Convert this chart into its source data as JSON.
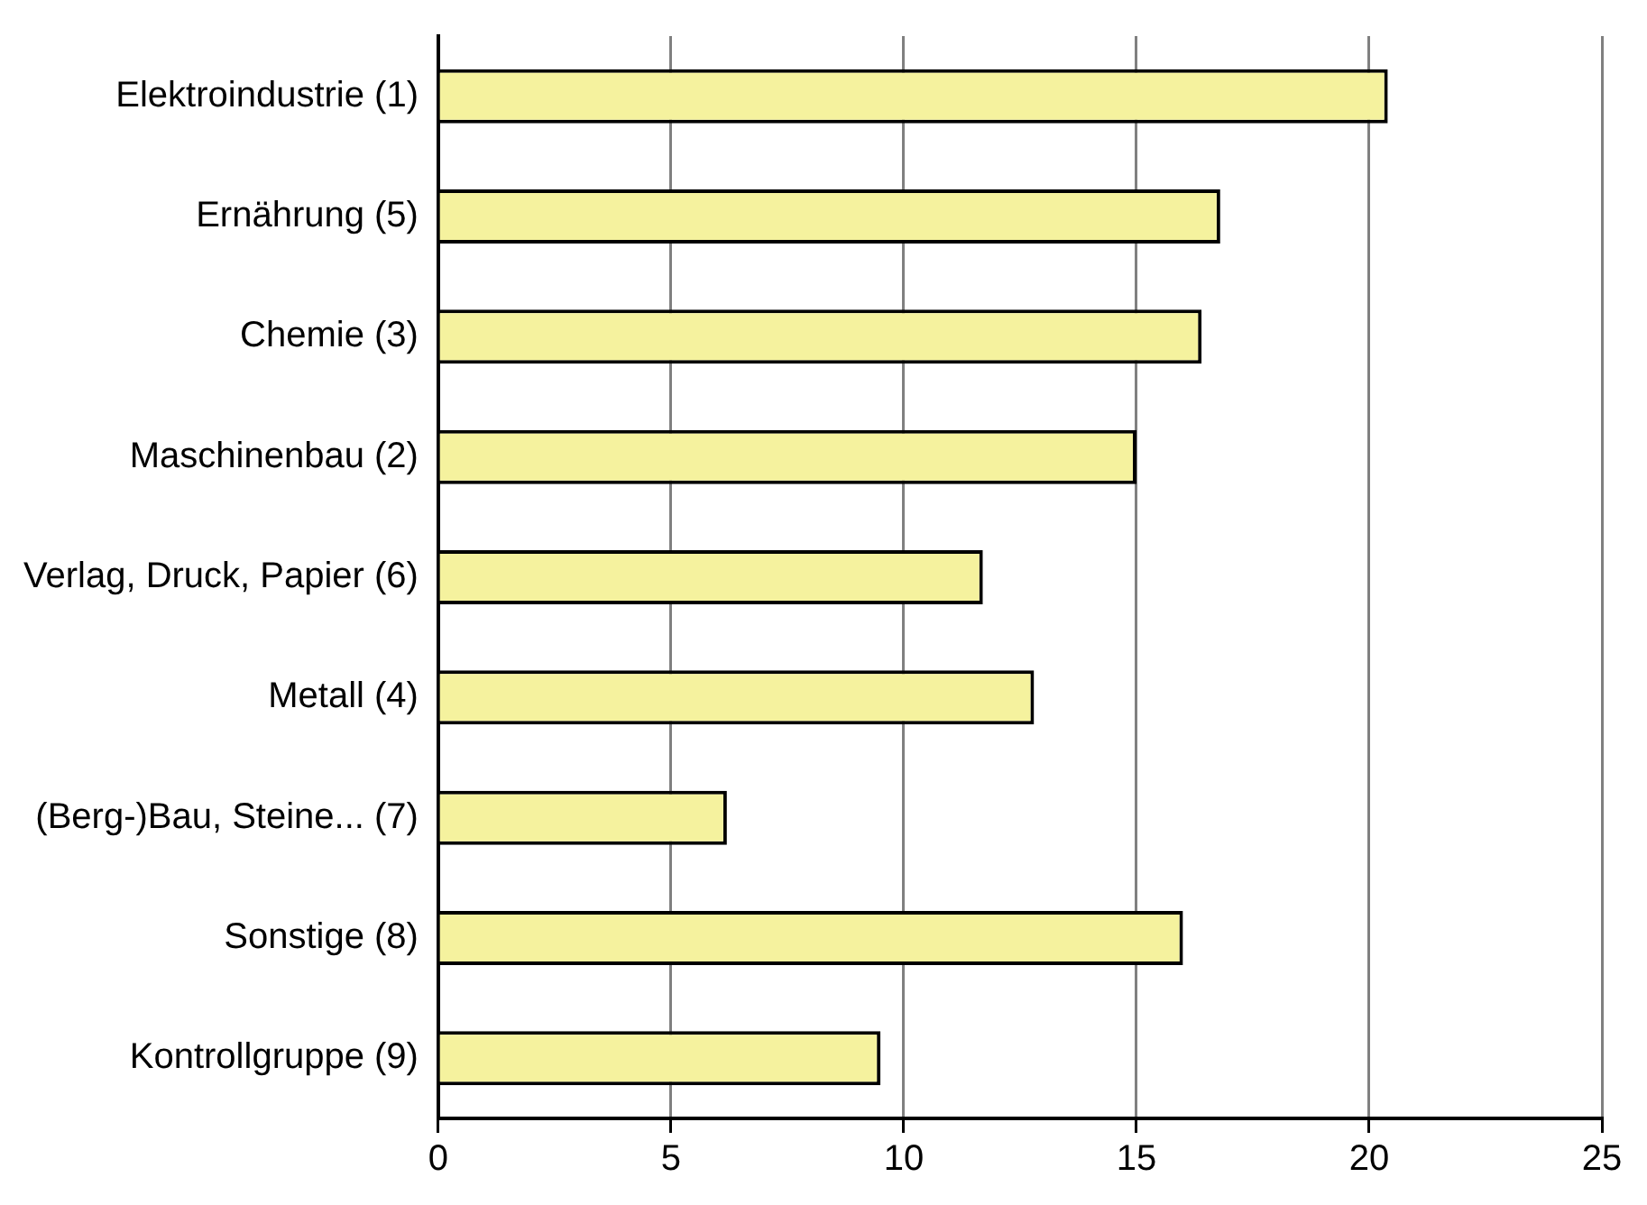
{
  "chart_data": {
    "type": "bar",
    "orientation": "horizontal",
    "categories": [
      "Elektroindustrie (1)",
      "Ernährung (5)",
      "Chemie (3)",
      "Maschinenbau (2)",
      "Verlag, Druck, Papier (6)",
      "Metall (4)",
      "(Berg-)Bau, Steine... (7)",
      "Sonstige (8)",
      "Kontrollgruppe (9)"
    ],
    "values": [
      20.4,
      16.8,
      16.4,
      15.0,
      11.7,
      12.8,
      6.2,
      16.0,
      9.5
    ],
    "color": "#f5f29e",
    "xlim": [
      0,
      25
    ],
    "xticks": [
      0,
      5,
      10,
      15,
      20,
      25
    ],
    "grid": "x",
    "legend": false
  }
}
